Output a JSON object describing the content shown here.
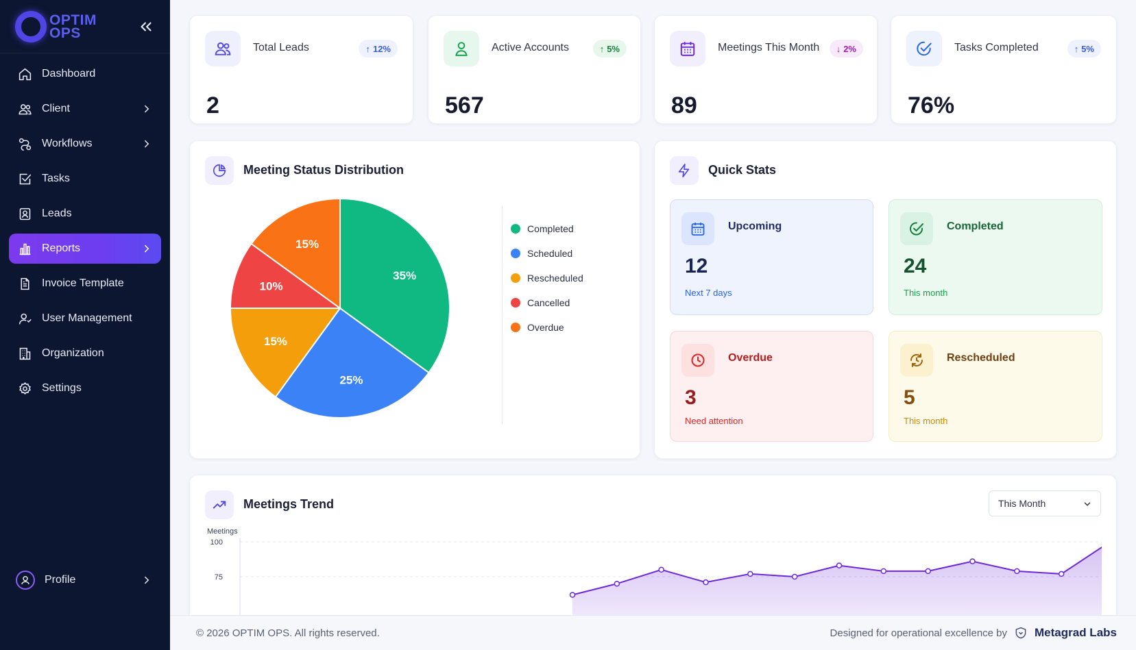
{
  "brand": {
    "line1": "OPTIM",
    "line2": "OPS"
  },
  "sidebar": {
    "items": [
      {
        "label": "Dashboard",
        "icon": "home-icon"
      },
      {
        "label": "Client",
        "icon": "users-icon"
      },
      {
        "label": "Workflows",
        "icon": "workflow-icon"
      },
      {
        "label": "Tasks",
        "icon": "task-check-icon"
      },
      {
        "label": "Leads",
        "icon": "contact-icon"
      },
      {
        "label": "Reports",
        "icon": "bar-chart-icon"
      },
      {
        "label": "Invoice Template",
        "icon": "document-icon"
      },
      {
        "label": "User Management",
        "icon": "user-manage-icon"
      },
      {
        "label": "Organization",
        "icon": "building-icon"
      },
      {
        "label": "Settings",
        "icon": "gear-icon"
      }
    ],
    "profile_label": "Profile"
  },
  "stats": [
    {
      "label": "Total Leads",
      "value": "2",
      "change": "12%",
      "direction": "up",
      "icon": "users-icon"
    },
    {
      "label": "Active Accounts",
      "value": "567",
      "change": "5%",
      "direction": "up",
      "icon": "user-icon"
    },
    {
      "label": "Meetings This Month",
      "value": "89",
      "change": "2%",
      "direction": "down",
      "icon": "calendar-icon"
    },
    {
      "label": "Tasks Completed",
      "value": "76%",
      "change": "5%",
      "direction": "up",
      "icon": "check-circle-icon"
    }
  ],
  "distribution": {
    "title": "Meeting Status Distribution"
  },
  "quick_stats": {
    "title": "Quick Stats",
    "items": [
      {
        "label": "Upcoming",
        "value": "12",
        "sub": "Next 7 days",
        "icon": "calendar-icon"
      },
      {
        "label": "Completed",
        "value": "24",
        "sub": "This month",
        "icon": "check-circle-icon"
      },
      {
        "label": "Overdue",
        "value": "3",
        "sub": "Need attention",
        "icon": "clock-icon"
      },
      {
        "label": "Rescheduled",
        "value": "5",
        "sub": "This month",
        "icon": "reschedule-icon"
      }
    ]
  },
  "trend": {
    "title": "Meetings Trend",
    "period": "This Month"
  },
  "footer": {
    "copyright": "© 2026 OPTIM OPS. All rights reserved.",
    "designed_by": "Designed for operational excellence by",
    "company": "Metagrad Labs"
  },
  "chart_data": [
    {
      "type": "pie",
      "title": "Meeting Status Distribution",
      "labels": [
        "Completed",
        "Scheduled",
        "Rescheduled",
        "Cancelled",
        "Overdue"
      ],
      "values": [
        35,
        25,
        15,
        10,
        15
      ],
      "colors": [
        "#10b981",
        "#3b82f6",
        "#f59e0b",
        "#ef4444",
        "#f97316"
      ],
      "legend": "right"
    },
    {
      "type": "area",
      "title": "Meetings Trend",
      "ylabel": "Meetings",
      "yticks": [
        75,
        100
      ],
      "ylim": [
        60,
        100
      ],
      "values": [
        62,
        70,
        80,
        71,
        77,
        75,
        83,
        79,
        79,
        86,
        79,
        77,
        98
      ],
      "color": "#6d28d9",
      "grid": true
    }
  ]
}
